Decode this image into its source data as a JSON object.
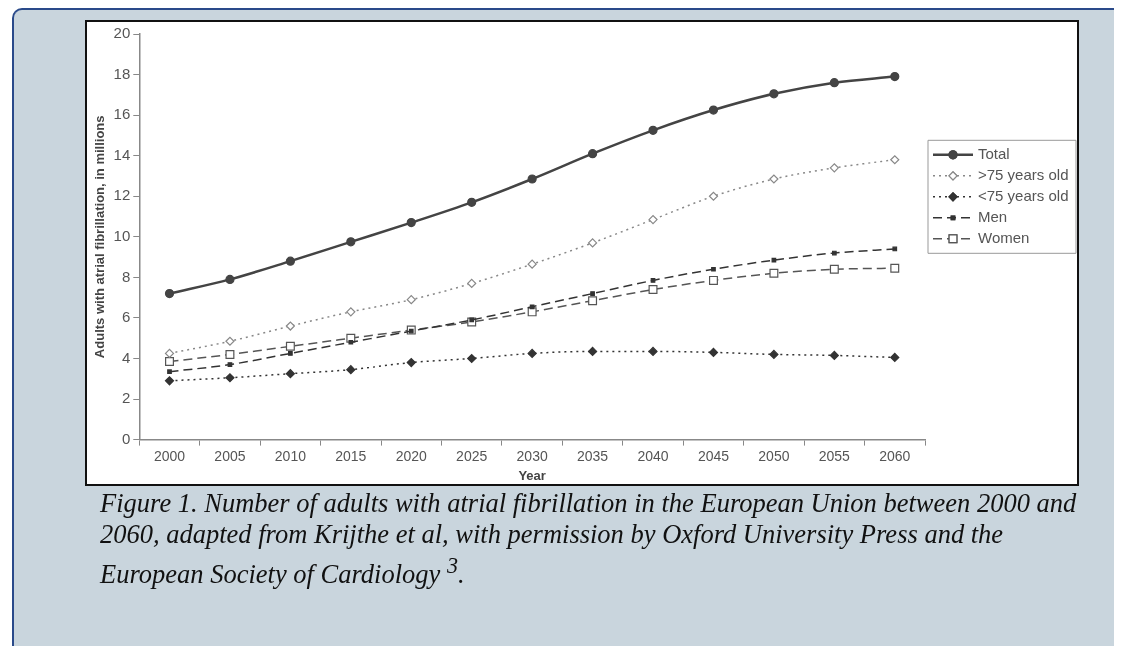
{
  "chart_data": {
    "type": "line",
    "xlabel": "Year",
    "ylabel": "Adults with atrial fibrillation, in millions",
    "categories": [
      "2000",
      "2005",
      "2010",
      "2015",
      "2020",
      "2025",
      "2030",
      "2035",
      "2040",
      "2045",
      "2050",
      "2055",
      "2060"
    ],
    "ylim": [
      0,
      20
    ],
    "yticks": [
      0,
      2,
      4,
      6,
      8,
      10,
      12,
      14,
      16,
      18,
      20
    ],
    "grid": false,
    "legend": "right",
    "series": [
      {
        "name": "Total",
        "color": "#444444",
        "marker": "circle",
        "line_style": "solid",
        "values": [
          7.2,
          7.9,
          8.8,
          9.75,
          10.7,
          11.7,
          12.85,
          14.1,
          15.25,
          16.25,
          17.05,
          17.6,
          17.9
        ]
      },
      {
        "name": ">75 years old",
        "color": "#888888",
        "marker": "diamond",
        "line_style": "dotted",
        "values": [
          4.25,
          4.85,
          5.6,
          6.3,
          6.9,
          7.7,
          8.65,
          9.7,
          10.85,
          12.0,
          12.85,
          13.4,
          13.8
        ]
      },
      {
        "name": "<75 years old",
        "color": "#333333",
        "marker": "diamond",
        "line_style": "dotted",
        "values": [
          2.9,
          3.05,
          3.25,
          3.45,
          3.8,
          4.0,
          4.25,
          4.35,
          4.35,
          4.3,
          4.2,
          4.15,
          4.05
        ]
      },
      {
        "name": "Men",
        "color": "#333333",
        "marker": "square",
        "line_style": "dashed",
        "values": [
          3.35,
          3.7,
          4.25,
          4.8,
          5.35,
          5.9,
          6.55,
          7.2,
          7.85,
          8.4,
          8.85,
          9.2,
          9.4
        ]
      },
      {
        "name": "Women",
        "color": "#555555",
        "marker": "square",
        "line_style": "dashed",
        "values": [
          3.85,
          4.2,
          4.6,
          5.0,
          5.4,
          5.8,
          6.3,
          6.85,
          7.4,
          7.85,
          8.2,
          8.4,
          8.45
        ]
      }
    ],
    "annotations": [
      "Figure 1. Number of adults with atrial fibrillation in the European Union between 2000 and 2060, adapted from Krijthe et al, with permission by Oxford University Press and the European Society of Cardiology $^{3}$."
    ]
  }
}
